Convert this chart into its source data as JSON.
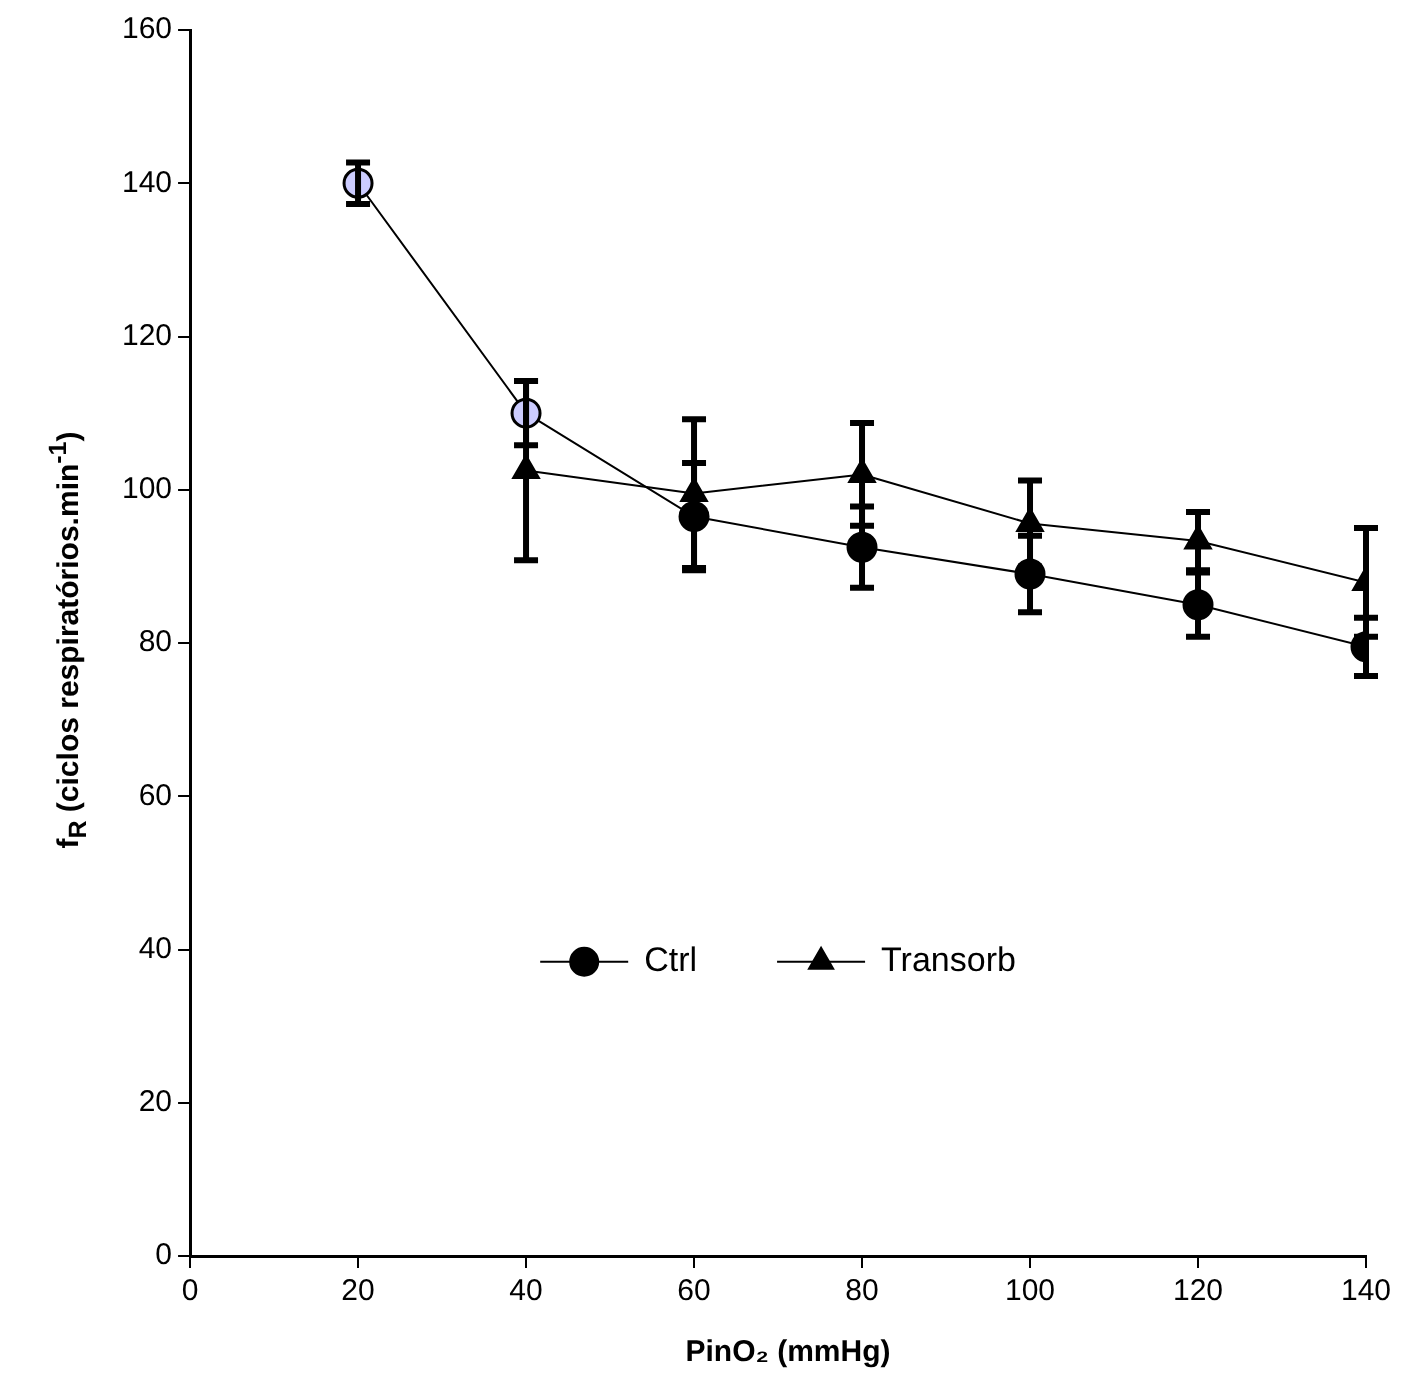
{
  "chart_data": {
    "type": "line",
    "xlabel": "PinO₂ (mmHg)",
    "ylabel": "f$_{R}$ (ciclos respiratórios.min$^{-1}$)",
    "x": [
      20,
      40,
      60,
      80,
      100,
      120,
      140
    ],
    "series": [
      {
        "name": "Ctrl",
        "color": "#000000",
        "marker": "circle",
        "colors": [
          "#ccccff",
          "#ccccff",
          "#000000",
          "#000000",
          "#000000",
          "#000000",
          "#000000"
        ],
        "values": [
          140,
          110,
          96.5,
          92.5,
          89,
          85,
          79.5
        ],
        "errors": [
          2.7,
          4.2,
          7,
          5.3,
          5,
          4.2,
          3.8
        ]
      },
      {
        "name": "Transorb",
        "color": "#000000",
        "marker": "triangle",
        "x": [
          40,
          60,
          80,
          100,
          120,
          140
        ],
        "values": [
          102.5,
          99.5,
          102,
          95.6,
          93.3,
          87.9
        ],
        "errors": [
          11.7,
          9.7,
          6.7,
          5.6,
          3.8,
          7.1
        ]
      }
    ],
    "xlim": [
      0,
      140
    ],
    "xticks": [
      0,
      20,
      40,
      60,
      80,
      100,
      120,
      140
    ],
    "ylim": [
      0,
      160
    ],
    "yticks": [
      0,
      20,
      40,
      60,
      80,
      100,
      120,
      140,
      160
    ],
    "grid": false,
    "legend": "center"
  }
}
